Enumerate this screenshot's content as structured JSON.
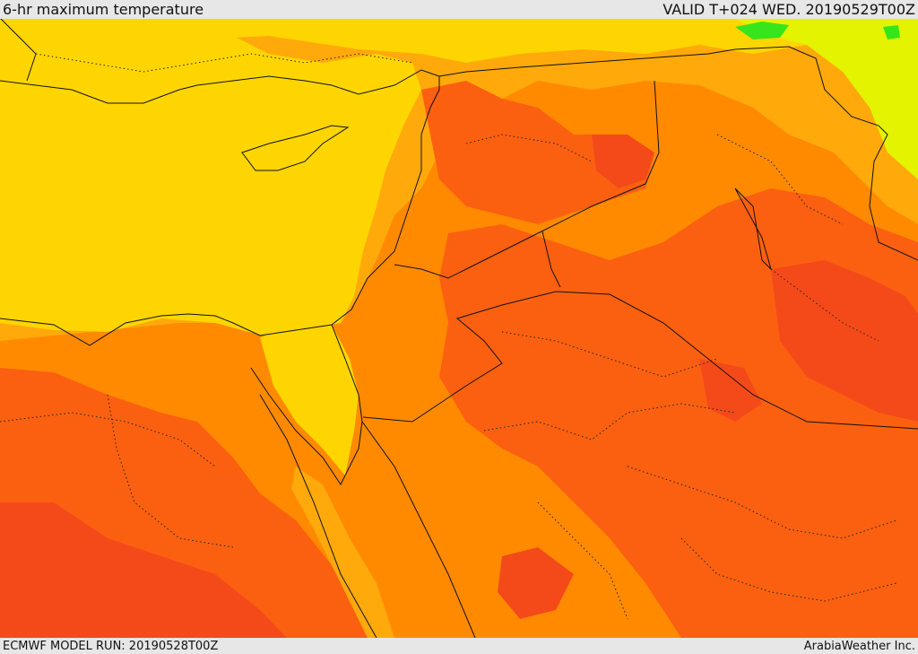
{
  "header": {
    "title": "6-hr maximum temperature",
    "valid": "VALID T+024 WED. 20190529T00Z"
  },
  "footer": {
    "model_run": "ECMWF MODEL RUN: 20190528T00Z",
    "credit": "ArabiaWeather Inc."
  },
  "palette": {
    "deep_red": "#f44a1a",
    "red_orange": "#fb6010",
    "orange": "#ff8a00",
    "light_orange": "#ffa90b",
    "yellow": "#ffd500",
    "yellow_green": "#e3f300",
    "green": "#37e51c"
  }
}
